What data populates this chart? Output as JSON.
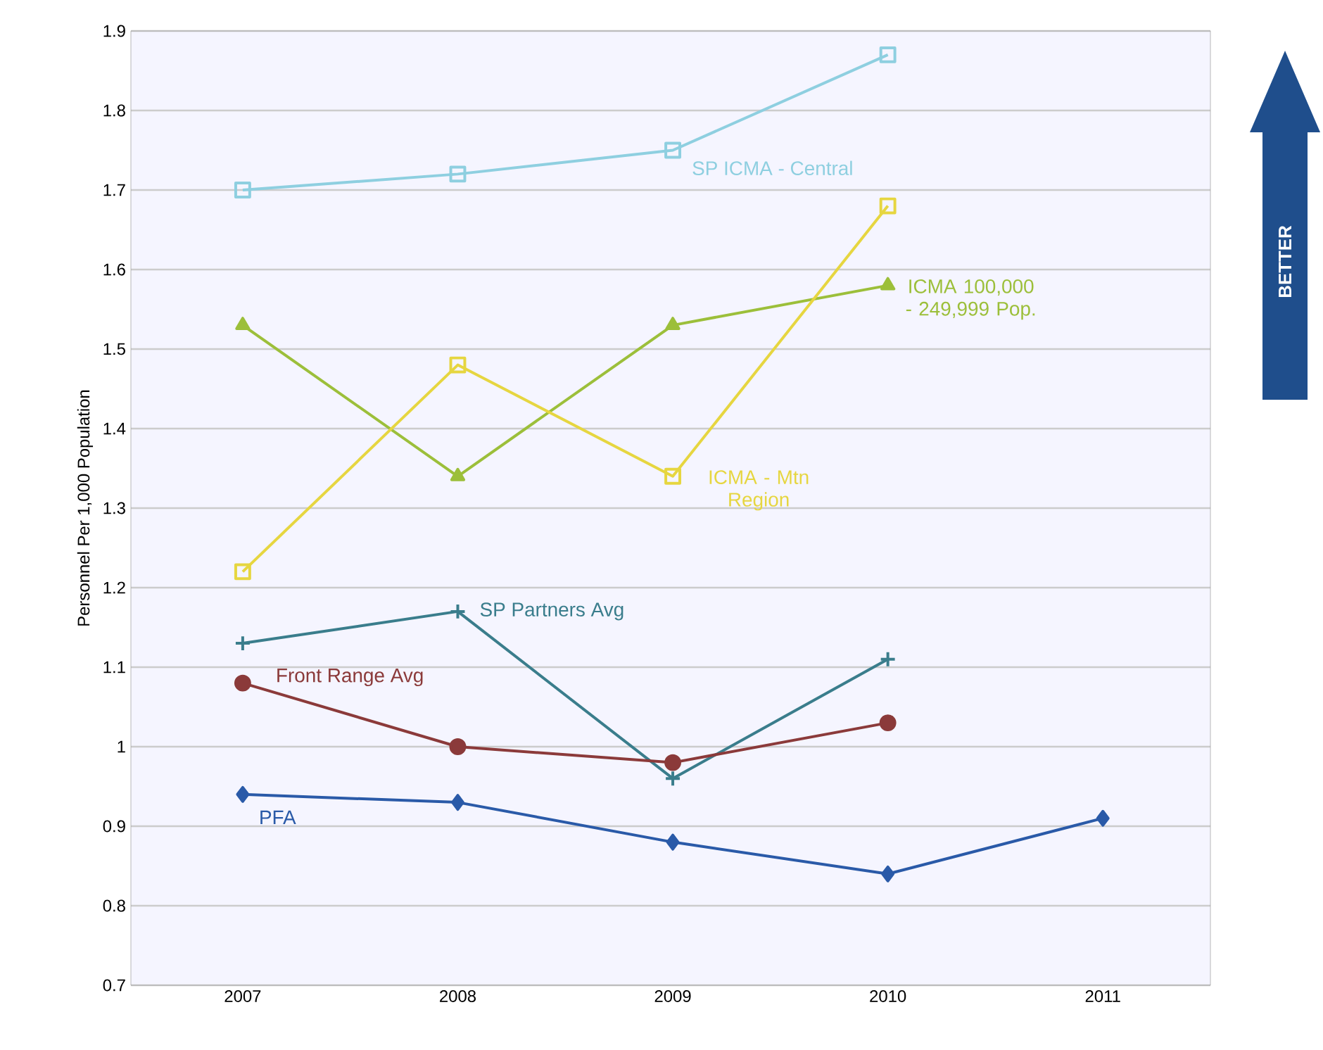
{
  "chart_data": {
    "type": "line",
    "ylabel": "Personnel Per 1,000 Population",
    "categories": [
      "2007",
      "2008",
      "2009",
      "2010",
      "2011"
    ],
    "series": [
      {
        "name": "SP ICMA - Central",
        "color": "#8ecfe0",
        "marker": "square",
        "values": [
          1.7,
          1.72,
          1.75,
          1.87,
          null
        ]
      },
      {
        "name": "ICMA 100,000 - 249,999 Pop.",
        "color": "#9cbf3a",
        "marker": "triangle",
        "values": [
          1.53,
          1.34,
          1.53,
          1.58,
          null
        ]
      },
      {
        "name": "ICMA - Mtn Region",
        "color": "#e6d640",
        "marker": "square",
        "values": [
          1.22,
          1.48,
          1.34,
          1.68,
          null
        ]
      },
      {
        "name": "SP Partners Avg",
        "color": "#3a7d8c",
        "marker": "cross",
        "values": [
          1.13,
          1.17,
          0.96,
          1.11,
          null
        ]
      },
      {
        "name": "Front Range Avg",
        "color": "#8b3a3a",
        "marker": "circle",
        "values": [
          1.08,
          1.0,
          0.98,
          1.03,
          null
        ]
      },
      {
        "name": "PFA",
        "color": "#2a5aa8",
        "marker": "diamond",
        "values": [
          0.94,
          0.93,
          0.88,
          0.84,
          0.91
        ]
      }
    ],
    "ylim": [
      0.7,
      1.9
    ],
    "yticks": [
      0.7,
      0.8,
      0.9,
      1,
      1.1,
      1.2,
      1.3,
      1.4,
      1.5,
      1.6,
      1.7,
      1.8,
      1.9
    ],
    "grid": "y",
    "line_style": "solid",
    "annotations": [
      "BETTER"
    ]
  }
}
